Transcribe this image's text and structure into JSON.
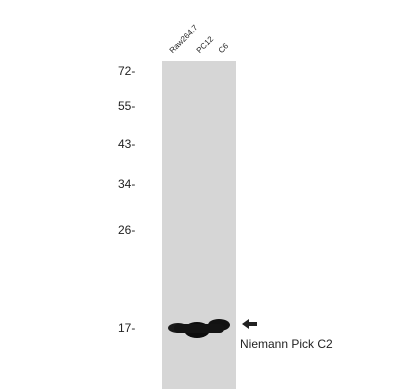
{
  "lanes": [
    "Raw264.7",
    "PC12",
    "C6"
  ],
  "markers": [
    "72-",
    "55-",
    "43-",
    "34-",
    "26-",
    "17-"
  ],
  "target": {
    "label": "Niemann Pick C2",
    "arrow_icon": "arrow-left-icon"
  },
  "colors": {
    "membrane": "#d6d6d6",
    "band": "#111111",
    "text": "#222222"
  }
}
